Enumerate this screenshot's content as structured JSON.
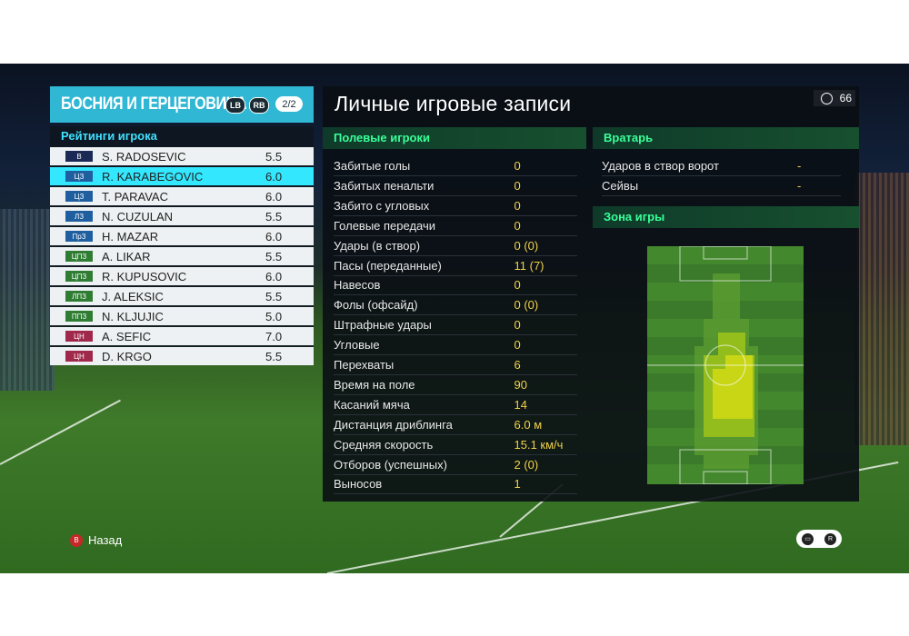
{
  "team": {
    "name": "БОСНИЯ И ГЕРЦЕГОВИНА",
    "lb": "LB",
    "rb": "RB",
    "page": "2/2",
    "list_title": "Рейтинги игрока",
    "players": [
      {
        "pos": "В",
        "name": "S. RADOSEVIC",
        "rating": "5.5",
        "pos_color": "#1a2a55",
        "selected": false
      },
      {
        "pos": "ЦЗ",
        "name": "R. KARABEGOVIC",
        "rating": "6.0",
        "pos_color": "#1f5f9f",
        "selected": true
      },
      {
        "pos": "ЦЗ",
        "name": "T. PARAVAC",
        "rating": "6.0",
        "pos_color": "#1f5f9f",
        "selected": false
      },
      {
        "pos": "ЛЗ",
        "name": "N. CUZULAN",
        "rating": "5.5",
        "pos_color": "#1f5f9f",
        "selected": false
      },
      {
        "pos": "ПрЗ",
        "name": "H. MAZAR",
        "rating": "6.0",
        "pos_color": "#1f5f9f",
        "selected": false
      },
      {
        "pos": "ЦПЗ",
        "name": "A. LIKAR",
        "rating": "5.5",
        "pos_color": "#2f7d33",
        "selected": false
      },
      {
        "pos": "ЦПЗ",
        "name": "R. KUPUSOVIC",
        "rating": "6.0",
        "pos_color": "#2f7d33",
        "selected": false
      },
      {
        "pos": "ЛПЗ",
        "name": "J. ALEKSIC",
        "rating": "5.5",
        "pos_color": "#2f7d33",
        "selected": false
      },
      {
        "pos": "ППЗ",
        "name": "N. KLJUJIC",
        "rating": "5.0",
        "pos_color": "#2f7d33",
        "selected": false
      },
      {
        "pos": "ЦН",
        "name": "A. SEFIC",
        "rating": "7.0",
        "pos_color": "#a0284a",
        "selected": false
      },
      {
        "pos": "ЦН",
        "name": "D. KRGO",
        "rating": "5.5",
        "pos_color": "#a0284a",
        "selected": false
      }
    ]
  },
  "records": {
    "title": "Личные игровые записи",
    "timer": "66",
    "field_title": "Полевые игроки",
    "field_stats": [
      {
        "label": "Забитые голы",
        "value": "0"
      },
      {
        "label": "Забитых пенальти",
        "value": "0"
      },
      {
        "label": "Забито с угловых",
        "value": "0"
      },
      {
        "label": "Голевые передачи",
        "value": "0"
      },
      {
        "label": "Удары (в створ)",
        "value": "0 (0)"
      },
      {
        "label": "Пасы (переданные)",
        "value": "11 (7)"
      },
      {
        "label": "Навесов",
        "value": "0"
      },
      {
        "label": "Фолы (офсайд)",
        "value": "0 (0)"
      },
      {
        "label": "Штрафные удары",
        "value": "0"
      },
      {
        "label": "Угловые",
        "value": "0"
      },
      {
        "label": "Перехваты",
        "value": "6"
      },
      {
        "label": "Время на поле",
        "value": "90"
      },
      {
        "label": "Касаний мяча",
        "value": "14"
      },
      {
        "label": "Дистанция дриблинга",
        "value": "6.0 м"
      },
      {
        "label": "Средняя скорость",
        "value": "15.1 км/ч"
      },
      {
        "label": "Отборов (успешных)",
        "value": "2 (0)"
      },
      {
        "label": "Выносов",
        "value": "1"
      }
    ],
    "gk_title": "Вратарь",
    "gk_stats": [
      {
        "label": "Ударов в створ ворот",
        "value": "-"
      },
      {
        "label": "Сейвы",
        "value": "-"
      }
    ],
    "zone_title": "Зона игры"
  },
  "footer": {
    "back_label": "Назад",
    "back_key": "B"
  },
  "colors": {
    "accent": "#2fb7d4",
    "selected_row": "#33e7ff",
    "section_text": "#39ff99",
    "value_text": "#f1d24a"
  }
}
